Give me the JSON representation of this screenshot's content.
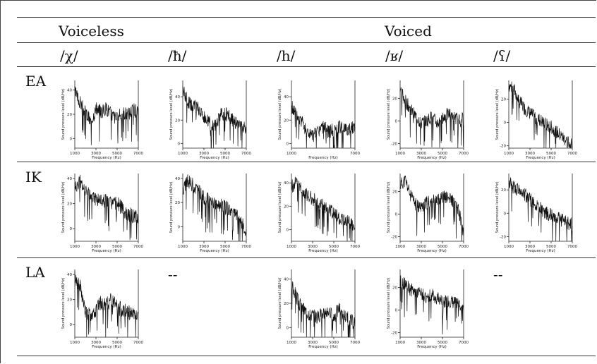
{
  "table": {
    "group_voiceless": "Voiceless",
    "group_voiced": "Voiced",
    "phonemes": [
      "/χ/",
      "/ħ/",
      "/h/",
      "/ʁ/",
      "/ʕ/"
    ],
    "rows": [
      "EA",
      "IK",
      "LA"
    ],
    "missing_mark": "--"
  },
  "chart_data": [
    {
      "type": "line",
      "row": "EA",
      "phoneme": "/χ/",
      "xlabel": "Frequency (Hz)",
      "ylabel": "Sound pressure level (dB/Hz)",
      "xticks": [
        1000,
        3000,
        5000,
        7000
      ],
      "xlim": [
        1000,
        7000
      ],
      "ylim": [
        -8,
        48
      ],
      "yticks": [
        0,
        20,
        40
      ],
      "x": [
        1000,
        1500,
        2000,
        2500,
        3000,
        3500,
        4000,
        4500,
        5000,
        5500,
        6000,
        6500,
        7000
      ],
      "y": [
        38,
        30,
        22,
        14,
        24,
        22,
        25,
        20,
        16,
        22,
        20,
        24,
        22
      ]
    },
    {
      "type": "line",
      "row": "EA",
      "phoneme": "/ħ/",
      "xlabel": "Frequency (Hz)",
      "ylabel": "Sound pressure level (dB/Hz)",
      "xticks": [
        1000,
        3000,
        5000,
        7000
      ],
      "xlim": [
        1000,
        7000
      ],
      "ylim": [
        -4,
        54
      ],
      "yticks": [
        0,
        20,
        40
      ],
      "x": [
        1000,
        1500,
        2000,
        2500,
        3000,
        3500,
        4000,
        4500,
        5000,
        5500,
        6000,
        6500,
        7000
      ],
      "y": [
        46,
        36,
        32,
        30,
        22,
        18,
        14,
        24,
        26,
        22,
        18,
        14,
        12
      ]
    },
    {
      "type": "line",
      "row": "EA",
      "phoneme": "/h/",
      "xlabel": "Frequency (Hz)",
      "ylabel": "Sound pressure level (dB/Hz)",
      "xticks": [
        1000,
        7000
      ],
      "xlim": [
        1000,
        7000
      ],
      "ylim": [
        -4,
        54
      ],
      "yticks": [
        0,
        20,
        40
      ],
      "x": [
        1000,
        1500,
        2000,
        2500,
        3000,
        3500,
        4000,
        4500,
        5000,
        5500,
        6000,
        6500,
        7000
      ],
      "y": [
        32,
        24,
        18,
        10,
        6,
        10,
        14,
        10,
        12,
        14,
        14,
        12,
        14
      ]
    },
    {
      "type": "line",
      "row": "EA",
      "phoneme": "/ʁ/",
      "xlabel": "Frequency (Hz)",
      "ylabel": "Sound pressure level (dB/Hz)",
      "xticks": [
        1000,
        3000,
        5000,
        7000
      ],
      "xlim": [
        1000,
        7000
      ],
      "ylim": [
        -24,
        36
      ],
      "yticks": [
        -20,
        0,
        20
      ],
      "x": [
        1000,
        1500,
        2000,
        2500,
        3000,
        3500,
        4000,
        4500,
        5000,
        5500,
        6000,
        6500,
        7000
      ],
      "y": [
        28,
        18,
        10,
        4,
        -2,
        0,
        4,
        -2,
        2,
        6,
        6,
        0,
        2
      ]
    },
    {
      "type": "line",
      "row": "EA",
      "phoneme": "/ʕ/",
      "xlabel": "Frequency (Hz)",
      "ylabel": "Sound pressure level (dB/Hz)",
      "xticks": [
        1000,
        3000,
        5000,
        7000
      ],
      "xlim": [
        1000,
        7000
      ],
      "ylim": [
        -22,
        36
      ],
      "yticks": [
        -20,
        0,
        20
      ],
      "x": [
        1000,
        1500,
        2000,
        2500,
        3000,
        3500,
        4000,
        4500,
        5000,
        5500,
        6000,
        6500,
        7000
      ],
      "y": [
        32,
        28,
        18,
        12,
        8,
        4,
        2,
        -2,
        -4,
        -8,
        -12,
        -16,
        -20
      ]
    },
    {
      "type": "line",
      "row": "IK",
      "phoneme": "/χ/",
      "xlabel": "Frequency (Hz)",
      "ylabel": "Sound pressure level (dB/Hz)",
      "xticks": [
        1000,
        3000,
        5000,
        7000
      ],
      "xlim": [
        1000,
        7000
      ],
      "ylim": [
        -10,
        44
      ],
      "yticks": [
        0,
        20,
        40
      ],
      "x": [
        1000,
        1500,
        2000,
        2500,
        3000,
        3500,
        4000,
        4500,
        5000,
        5500,
        6000,
        6500,
        7000
      ],
      "y": [
        32,
        38,
        30,
        26,
        24,
        22,
        22,
        20,
        20,
        16,
        12,
        10,
        8
      ]
    },
    {
      "type": "line",
      "row": "IK",
      "phoneme": "/ħ/",
      "xlabel": "Frequency (Hz)",
      "ylabel": "Sound pressure level (dB/Hz)",
      "xticks": [
        1000,
        3000,
        5000,
        7000
      ],
      "xlim": [
        1000,
        7000
      ],
      "ylim": [
        -12,
        44
      ],
      "yticks": [
        0,
        20,
        40
      ],
      "x": [
        1000,
        1500,
        2000,
        2500,
        3000,
        3500,
        4000,
        4500,
        5000,
        5500,
        6000,
        6500,
        7000
      ],
      "y": [
        30,
        38,
        34,
        30,
        24,
        22,
        20,
        18,
        16,
        14,
        10,
        6,
        -8
      ]
    },
    {
      "type": "line",
      "row": "IK",
      "phoneme": "/h/",
      "xlabel": "Frequency (Hz)",
      "ylabel": "Sound pressure level (dB/Hz)",
      "xticks": [
        1000,
        3000,
        5000,
        7000
      ],
      "xlim": [
        1000,
        7000
      ],
      "ylim": [
        -10,
        48
      ],
      "yticks": [
        0,
        20,
        40
      ],
      "x": [
        1000,
        1500,
        2000,
        2500,
        3000,
        3500,
        4000,
        4500,
        5000,
        5500,
        6000,
        6500,
        7000
      ],
      "y": [
        36,
        42,
        34,
        30,
        26,
        24,
        20,
        16,
        14,
        10,
        8,
        6,
        2
      ]
    },
    {
      "type": "line",
      "row": "IK",
      "phoneme": "/ʁ/",
      "xlabel": "Frequency (Hz)",
      "ylabel": "Sound pressure level (dB/Hz)",
      "xticks": [
        1000,
        3000,
        5000,
        7000
      ],
      "xlim": [
        1000,
        7000
      ],
      "ylim": [
        -24,
        36
      ],
      "yticks": [
        -20,
        0,
        20
      ],
      "x": [
        1000,
        1500,
        2000,
        2500,
        3000,
        3500,
        4000,
        4500,
        5000,
        5500,
        6000,
        6500,
        7000
      ],
      "y": [
        26,
        30,
        16,
        8,
        6,
        10,
        12,
        14,
        16,
        14,
        12,
        4,
        -16
      ]
    },
    {
      "type": "line",
      "row": "IK",
      "phoneme": "/ʕ/",
      "xlabel": "Frequency (Hz)",
      "ylabel": "Sound pressure level (dB/Hz)",
      "xticks": [
        1000,
        3000,
        5000,
        7000
      ],
      "xlim": [
        1000,
        7000
      ],
      "ylim": [
        -24,
        34
      ],
      "yticks": [
        -20,
        0,
        20
      ],
      "x": [
        1000,
        1500,
        2000,
        2500,
        3000,
        3500,
        4000,
        4500,
        5000,
        5500,
        6000,
        6500,
        7000
      ],
      "y": [
        26,
        22,
        20,
        16,
        12,
        8,
        4,
        0,
        -2,
        -4,
        -6,
        -8,
        -10
      ]
    },
    {
      "type": "line",
      "row": "LA",
      "phoneme": "/χ/",
      "xlabel": "Frequency (Hz)",
      "ylabel": "Sound pressure level (dB/Hz)",
      "xticks": [
        1000,
        3000,
        5000,
        7000
      ],
      "xlim": [
        1000,
        7000
      ],
      "ylim": [
        -10,
        44
      ],
      "yticks": [
        0,
        20,
        40
      ],
      "x": [
        1000,
        1500,
        2000,
        2500,
        3000,
        3500,
        4000,
        4500,
        5000,
        5500,
        6000,
        6500,
        7000
      ],
      "y": [
        38,
        30,
        10,
        8,
        12,
        18,
        16,
        20,
        14,
        12,
        10,
        8,
        4
      ]
    },
    {
      "type": "line",
      "row": "LA",
      "phoneme": "/h/",
      "xlabel": "Frequency (Hz)",
      "ylabel": "Sound pressure level (dB/Hz)",
      "xticks": [
        1000,
        3000,
        5000,
        7000
      ],
      "xlim": [
        1000,
        7000
      ],
      "ylim": [
        -8,
        48
      ],
      "yticks": [
        0,
        20,
        40
      ],
      "x": [
        1000,
        1500,
        2000,
        2500,
        3000,
        3500,
        4000,
        4500,
        5000,
        5500,
        6000,
        6500,
        7000
      ],
      "y": [
        36,
        24,
        16,
        12,
        10,
        8,
        12,
        14,
        8,
        16,
        10,
        6,
        4
      ]
    },
    {
      "type": "line",
      "row": "LA",
      "phoneme": "/ʁ/",
      "xlabel": "Frequency (Hz)",
      "ylabel": "Sound pressure level (dB/Hz)",
      "xticks": [
        1000,
        3000,
        5000,
        7000
      ],
      "xlim": [
        1000,
        7000
      ],
      "ylim": [
        -24,
        36
      ],
      "yticks": [
        -20,
        0,
        20
      ],
      "x": [
        1000,
        1500,
        2000,
        2500,
        3000,
        3500,
        4000,
        4500,
        5000,
        5500,
        6000,
        6500,
        7000
      ],
      "y": [
        28,
        22,
        18,
        16,
        14,
        12,
        14,
        10,
        8,
        8,
        6,
        6,
        4
      ]
    }
  ]
}
